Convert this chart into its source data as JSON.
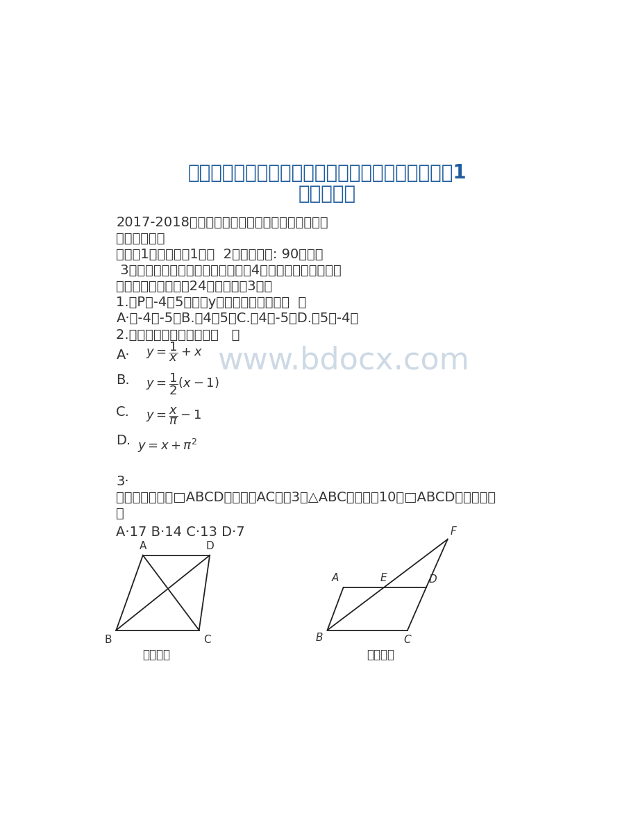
{
  "bg_color": "#ffffff",
  "title_line1": "新课标北京课改版八年级数学下册期中考试模拟试题1",
  "title_line2": "及答案解析",
  "title_color": "#1F5C9E",
  "title_fontsize": 20,
  "body_color": "#2B579A",
  "text_color": "#333333",
  "watermark_text": "www.bdocx.com",
  "watermark_color": "#C5D3E0",
  "watermark_fontsize": 32,
  "line1": "2017-2018学年（新课标）京改版八年级数学下册",
  "line2": "期中模拟试题",
  "line3": "注意：1、本试卷共1页；  2、考试时间: 90分钟；",
  "line4": " 3、姓名、学号必须写在指定地方；4、本考试为闭卷考试。",
  "line5": "一、选择题（本题共24分，每小题3分）",
  "line6": "1.点P（-4，5）关于y轴的对称点坐标是（  ）",
  "line7": "A·（-4，-5）B.（4，5）C.（4，-5）D.（5，-4）",
  "line8": "2.下列不是一次函数的是（   ）",
  "line9": "3·",
  "line10": "已知：如图，若□ABCD的对角线AC长为3，△ABC的周长为10，□ABCD的周长是（",
  "line11": "）",
  "line12": "A·17 B·14 C·13 D·7",
  "fig3_label": "第３题图",
  "fig4_label": "第４题图"
}
